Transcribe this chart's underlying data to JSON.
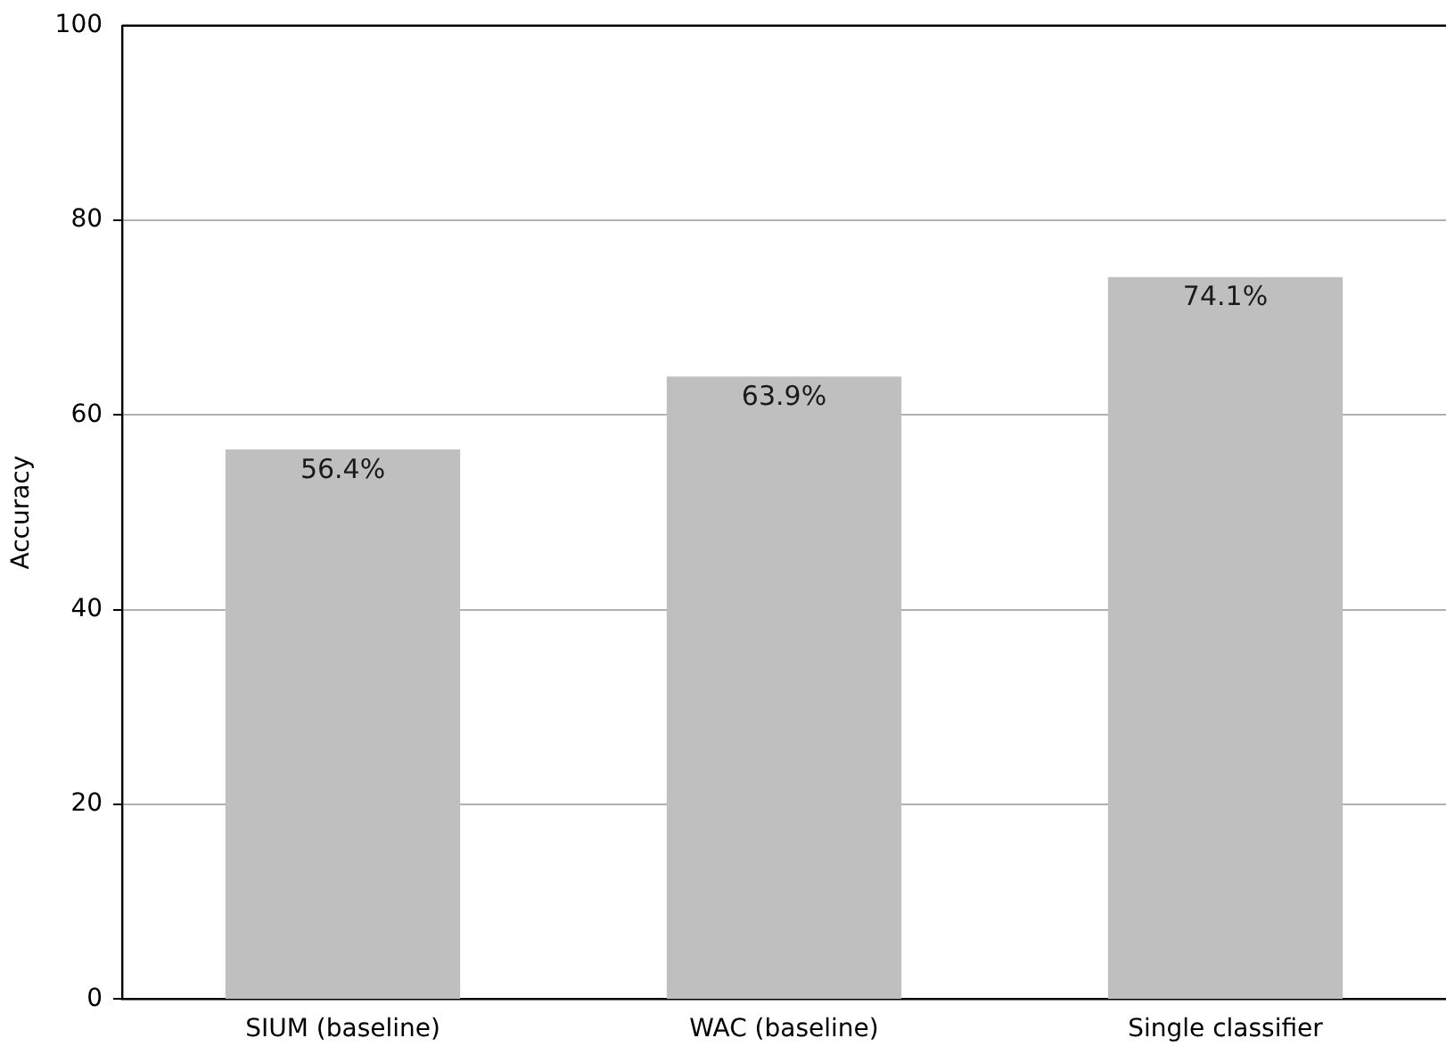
{
  "chart_data": {
    "type": "bar",
    "ylabel": "Accuracy",
    "categories": [
      "SIUM (baseline)",
      "WAC (baseline)",
      "Single classifier"
    ],
    "values": [
      56.4,
      63.9,
      74.1
    ],
    "value_labels": [
      "56.4%",
      "63.9%",
      "74.1%"
    ],
    "color": "#bfbfbf",
    "ylim": [
      0,
      100
    ],
    "yticks": [
      0,
      20,
      40,
      60,
      80,
      100
    ],
    "grid": "y",
    "legend": false
  }
}
